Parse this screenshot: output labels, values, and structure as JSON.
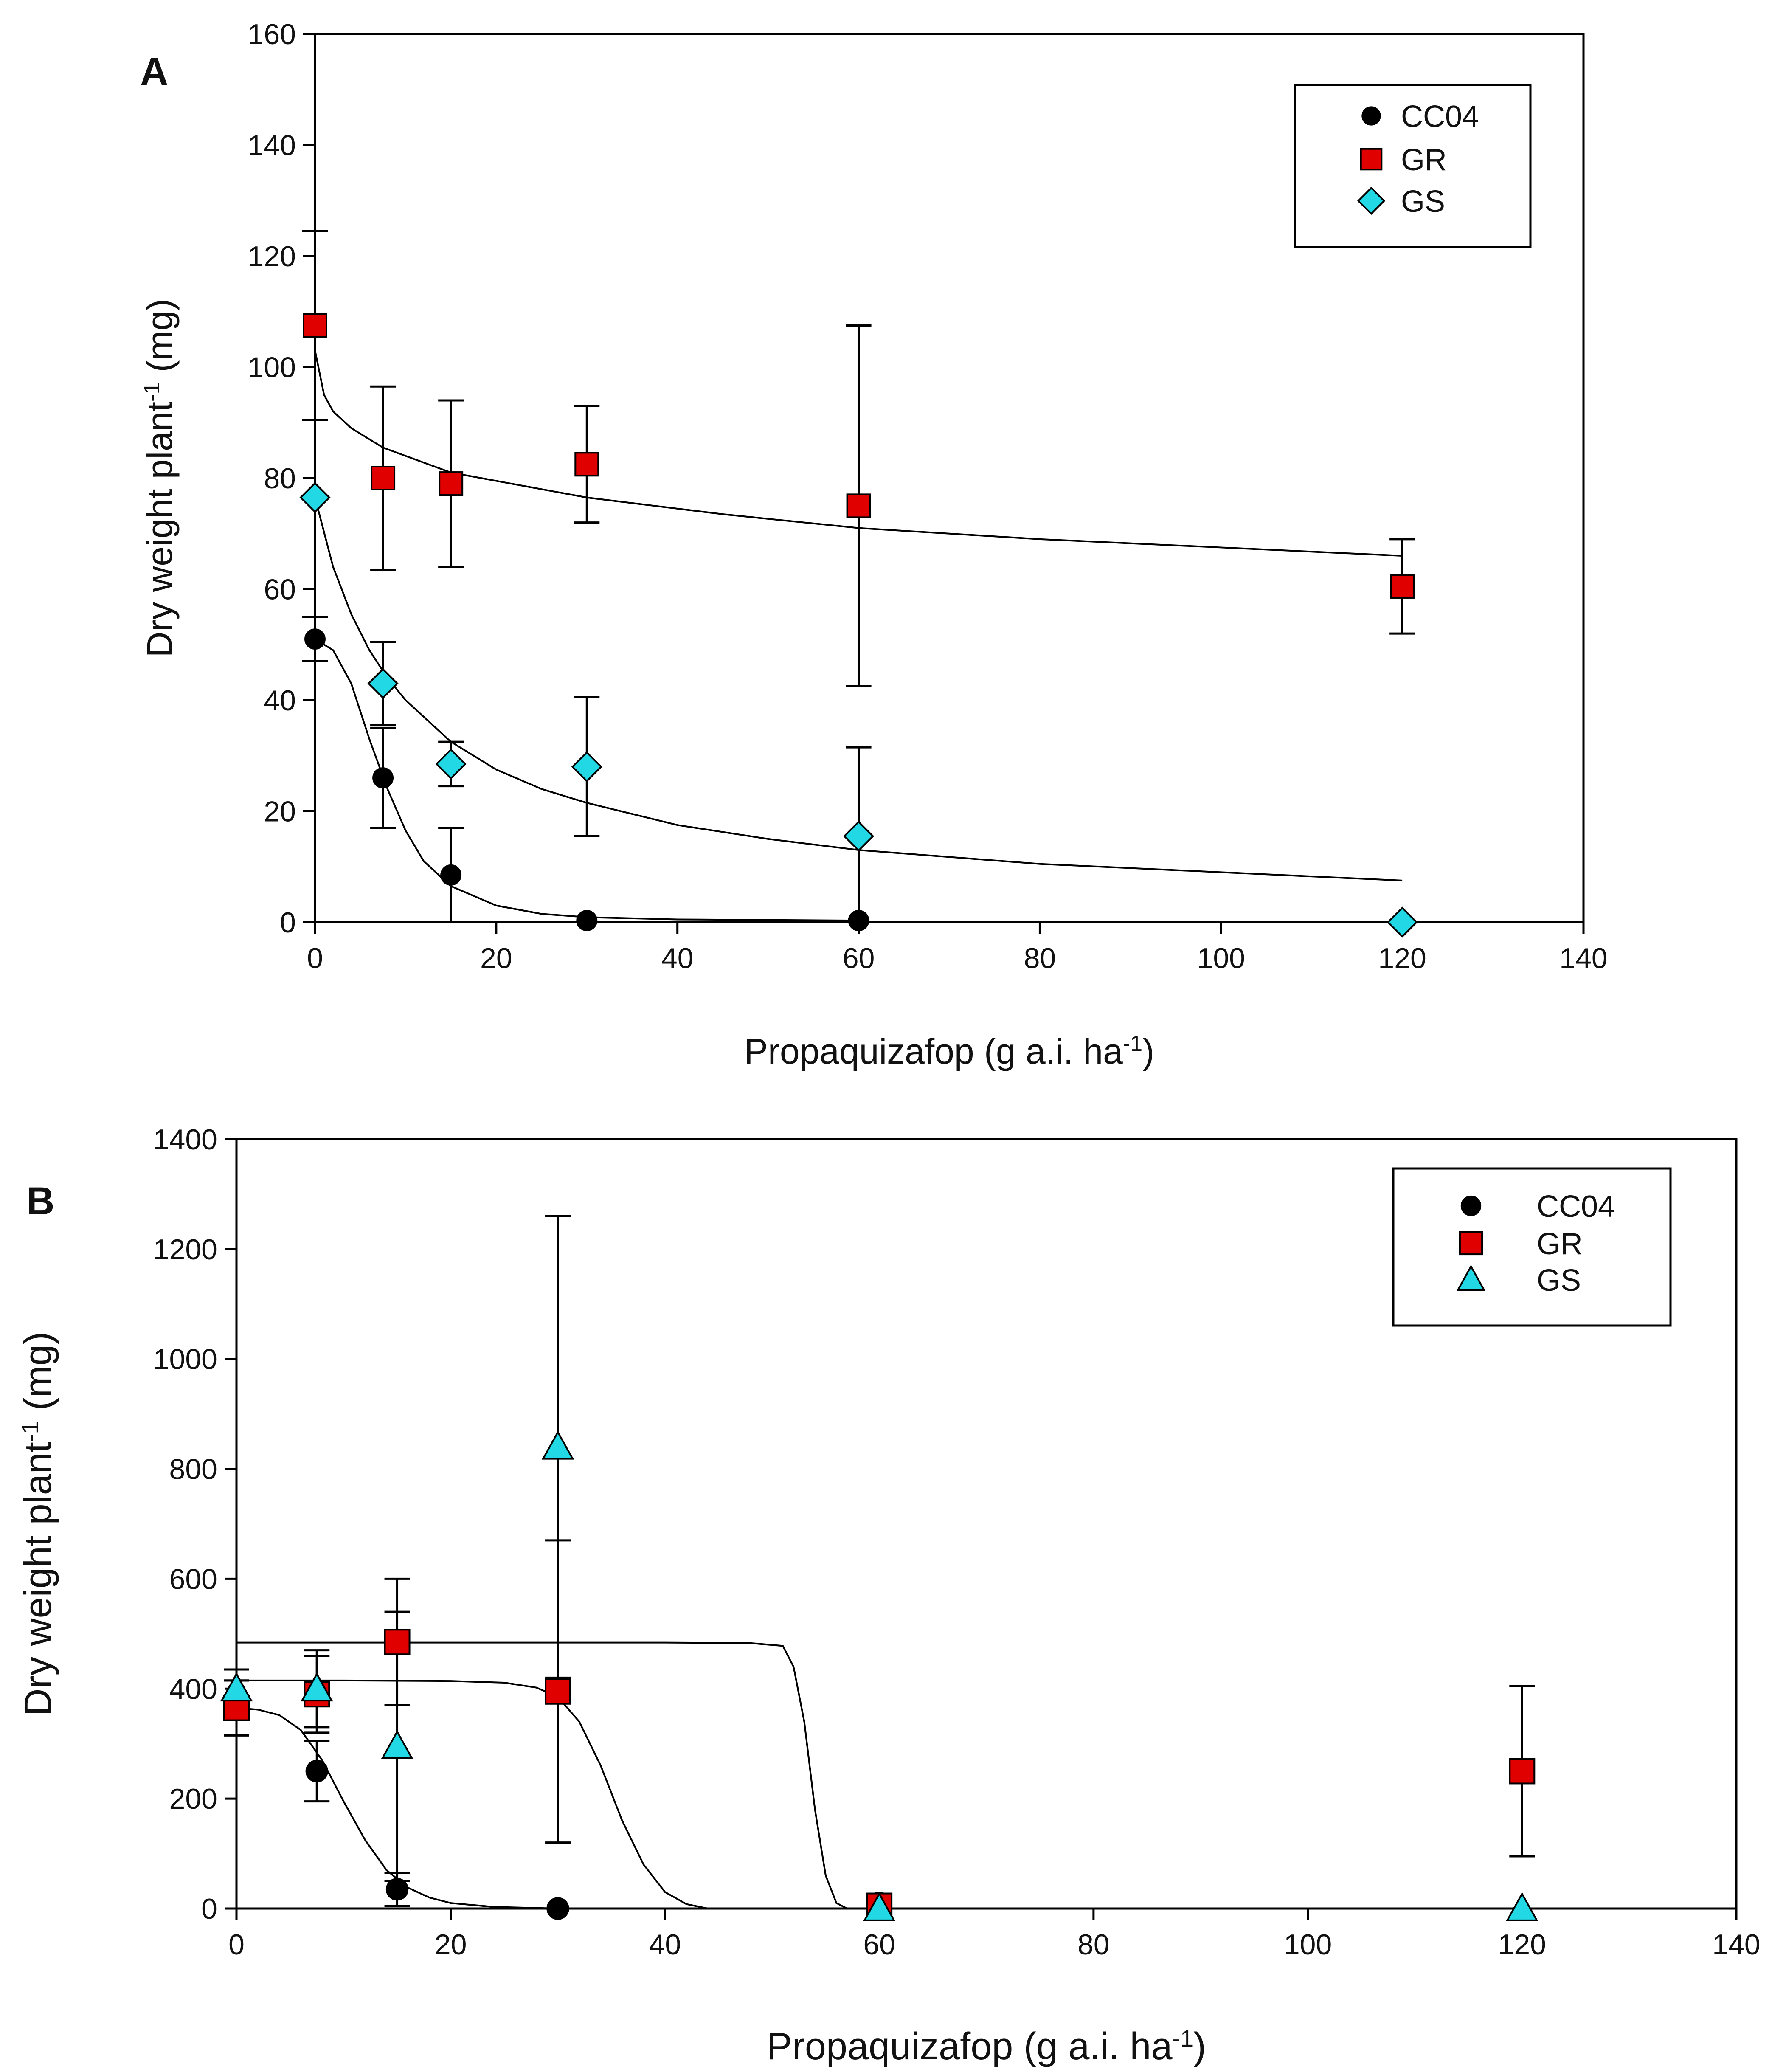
{
  "chart_data": [
    {
      "type": "scatter",
      "panel_label": "A",
      "xlabel": "Propaquizafop (g a.i. ha",
      "xlabel_sup": "-1",
      "xlabel_end": ")",
      "ylabel": "Dry weight plant",
      "ylabel_sup": "-1",
      "ylabel_end": " (mg)",
      "xlim": [
        0,
        140
      ],
      "ylim": [
        0,
        160
      ],
      "xticks": [
        0,
        20,
        40,
        60,
        80,
        100,
        120,
        140
      ],
      "yticks": [
        0,
        20,
        40,
        60,
        80,
        100,
        120,
        140,
        160
      ],
      "legend_position": "top-right",
      "series": [
        {
          "name": "CC04",
          "marker": "circle",
          "color": "#000000",
          "x": [
            0,
            7.5,
            15,
            30,
            60
          ],
          "y": [
            51,
            26,
            8.5,
            0.3,
            0.3
          ],
          "err_low": [
            4,
            9,
            8.5,
            0,
            0
          ],
          "err_high": [
            4,
            9,
            8.5,
            0,
            0
          ],
          "fit_x": [
            0,
            2,
            4,
            6,
            8,
            10,
            12,
            15,
            20,
            25,
            30,
            40,
            50,
            60
          ],
          "fit_y": [
            51,
            49,
            43,
            33,
            24,
            16.5,
            11,
            6.5,
            3,
            1.5,
            0.9,
            0.5,
            0.4,
            0.3
          ]
        },
        {
          "name": "GR",
          "marker": "square",
          "color": "#e00000",
          "x": [
            0,
            7.5,
            15,
            30,
            60,
            120
          ],
          "y": [
            107.5,
            80,
            79,
            82.5,
            75,
            60.5
          ],
          "err_low": [
            17,
            16.5,
            15,
            10.5,
            32.5,
            8.5
          ],
          "err_high": [
            17,
            16.5,
            15,
            10.5,
            32.5,
            8.5
          ],
          "fit_x": [
            0,
            1,
            2,
            4,
            7.5,
            10,
            15,
            20,
            30,
            45,
            60,
            80,
            100,
            120
          ],
          "fit_y": [
            103,
            95,
            92,
            89,
            85.5,
            84,
            81,
            79.5,
            76.5,
            73.5,
            71,
            69,
            67.5,
            66
          ]
        },
        {
          "name": "GS",
          "marker": "diamond",
          "color": "#22d8e4",
          "x": [
            0,
            7.5,
            15,
            30,
            60,
            120
          ],
          "y": [
            76.5,
            43,
            28.5,
            28,
            15.5,
            0
          ],
          "err_low": [
            0,
            7.5,
            4,
            12.5,
            16,
            0
          ],
          "err_high": [
            0,
            7.5,
            4,
            12.5,
            16,
            0
          ],
          "fit_x": [
            0,
            2,
            4,
            6,
            8,
            10,
            15,
            20,
            25,
            30,
            40,
            50,
            60,
            80,
            100,
            120
          ],
          "fit_y": [
            76.5,
            64,
            55.5,
            49,
            44,
            40,
            32.5,
            27.5,
            24,
            21.5,
            17.5,
            15,
            13,
            10.5,
            9,
            7.5
          ]
        }
      ]
    },
    {
      "type": "scatter",
      "panel_label": "B",
      "xlabel": "Propaquizafop (g a.i. ha",
      "xlabel_sup": "-1",
      "xlabel_end": ")",
      "ylabel": "Dry weight plant",
      "ylabel_sup": "-1",
      "ylabel_end": " (mg)",
      "xlim": [
        0,
        140
      ],
      "ylim": [
        0,
        1400
      ],
      "xticks": [
        0,
        20,
        40,
        60,
        80,
        100,
        120,
        140
      ],
      "yticks": [
        0,
        200,
        400,
        600,
        800,
        1000,
        1200,
        1400
      ],
      "legend_position": "top-right",
      "series": [
        {
          "name": "CC04",
          "marker": "circle",
          "color": "#000000",
          "x": [
            0,
            7.5,
            15,
            30,
            60
          ],
          "y": [
            365,
            250,
            35,
            0,
            10
          ],
          "err_low": [
            50,
            55,
            30,
            0,
            0
          ],
          "err_high": [
            50,
            55,
            30,
            0,
            0
          ],
          "fit_x": [
            0,
            2,
            4,
            6,
            8,
            10,
            12,
            14,
            16,
            18,
            20,
            24,
            28,
            30
          ],
          "fit_y": [
            365,
            362,
            352,
            325,
            270,
            195,
            125,
            70,
            38,
            20,
            10,
            3,
            1,
            0
          ]
        },
        {
          "name": "GR",
          "marker": "square",
          "color": "#e00000",
          "x": [
            0,
            7.5,
            15,
            30,
            60,
            120
          ],
          "y": [
            365,
            390,
            485,
            395,
            5,
            250
          ],
          "err_low": [
            50,
            70,
            115,
            275,
            0,
            155
          ],
          "err_high": [
            50,
            70,
            115,
            275,
            0,
            155
          ],
          "fit_x": [
            0,
            10,
            20,
            30,
            40,
            48,
            51,
            52,
            53,
            54,
            55,
            56,
            57
          ],
          "fit_y": [
            484,
            484,
            484,
            484,
            484,
            483,
            478,
            440,
            340,
            180,
            60,
            10,
            0
          ]
        },
        {
          "name": "GS",
          "marker": "triangle",
          "color": "#22d8e4",
          "x": [
            0,
            7.5,
            15,
            30,
            60,
            120
          ],
          "y": [
            400,
            400,
            295,
            840,
            0,
            0
          ],
          "err_low": [
            35,
            70,
            245,
            420,
            0,
            0
          ],
          "err_high": [
            35,
            70,
            245,
            420,
            0,
            0
          ],
          "fit_x": [
            0,
            10,
            20,
            25,
            28,
            30,
            32,
            34,
            36,
            38,
            40,
            42,
            44
          ],
          "fit_y": [
            415,
            415,
            414,
            411,
            402,
            385,
            340,
            260,
            160,
            80,
            30,
            8,
            0
          ]
        }
      ]
    }
  ]
}
